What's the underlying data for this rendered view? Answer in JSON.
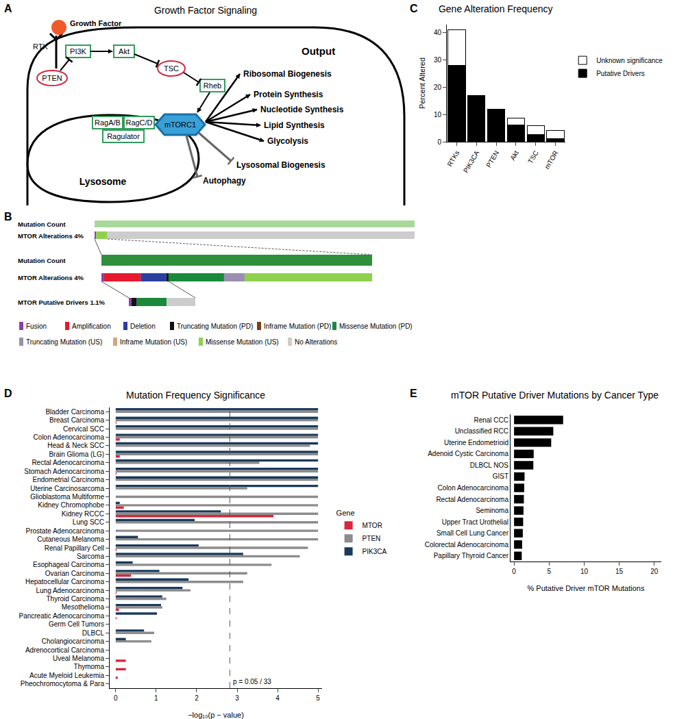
{
  "panel_labels": [
    "A",
    "B",
    "C",
    "D",
    "E"
  ],
  "diagram": {
    "title": "Growth Factor Signaling",
    "nodes": {
      "growth_factor": "Growth Factor",
      "rtk": "RTK",
      "pi3k": "PI3K",
      "pten": "PTEN",
      "akt": "Akt",
      "tsc": "TSC",
      "rheb": "Rheb",
      "raga": "RagA/B",
      "ragc": "RagC/D",
      "ragulator": "Ragulator",
      "mtorc1": "mTORC1",
      "lysosome": "Lysosome"
    },
    "output_title": "Output",
    "outputs": [
      "Ribosomal Biogenesis",
      "Protein Synthesis",
      "Nucleotide Synthesis",
      "Lipid Synthesis",
      "Glycolysis"
    ],
    "inhibited_outputs": [
      "Lysosomal Biogenesis",
      "Autophagy"
    ]
  },
  "oncoprint": {
    "tracks": [
      {
        "label": "Mutation Count",
        "kind": "count"
      },
      {
        "label": "MTOR Alterations 4%",
        "kind": "alterations",
        "segments": [
          {
            "type": "Fusion",
            "share": 0.5
          },
          {
            "type": "Missense Mutation (US)",
            "share": 3.5
          },
          {
            "type": "No Alterations",
            "share": 96
          }
        ]
      },
      {
        "label": "Mutation Count",
        "kind": "count"
      },
      {
        "label": "MTOR Alterations 4%",
        "kind": "alterations",
        "segments": [
          {
            "type": "Fusion",
            "share": 1
          },
          {
            "type": "Amplification",
            "share": 13.5
          },
          {
            "type": "Deletion",
            "share": 9.5
          },
          {
            "type": "Truncating Mutation (PD)",
            "share": 0.8
          },
          {
            "type": "Missense Mutation (PD)",
            "share": 20.5
          },
          {
            "type": "Truncating Mutation (US)",
            "share": 7.6
          },
          {
            "type": "Missense Mutation (US)",
            "share": 47.1
          }
        ]
      },
      {
        "label": "MTOR Putative Drivers 1.1%",
        "kind": "alterations",
        "segments": [
          {
            "type": "Fusion",
            "share": 4
          },
          {
            "type": "Truncating Mutation (PD)",
            "share": 8
          },
          {
            "type": "Missense Mutation (PD)",
            "share": 45
          },
          {
            "type": "No Alterations",
            "share": 43
          }
        ]
      }
    ],
    "legend": [
      {
        "name": "Fusion",
        "color": "#8b3fa8"
      },
      {
        "name": "Amplification",
        "color": "#e8192c"
      },
      {
        "name": "Deletion",
        "color": "#2a3fa0"
      },
      {
        "name": "Truncating Mutation (PD)",
        "color": "#111111"
      },
      {
        "name": "Inframe Mutation (PD)",
        "color": "#7b3f12"
      },
      {
        "name": "Missense Mutation (PD)",
        "color": "#1a8a3a"
      },
      {
        "name": "Truncating Mutation (US)",
        "color": "#9a8fb0"
      },
      {
        "name": "Inframe Mutation (US)",
        "color": "#d2a679"
      },
      {
        "name": "Missense Mutation (US)",
        "color": "#8fd14f"
      },
      {
        "name": "No Alterations",
        "color": "#cccccc"
      }
    ]
  },
  "chart_data": [
    {
      "type": "bar",
      "title": "Gene Alteration Frequency",
      "categories": [
        "RTKs",
        "PIK3CA",
        "PTEN",
        "Akt",
        "TSC",
        "mTOR"
      ],
      "stacked": true,
      "ylabel": "Percent Altered",
      "ylim": [
        0,
        43
      ],
      "yticks": [
        0,
        10,
        20,
        30,
        40
      ],
      "grid": false,
      "legend": "right",
      "series": [
        {
          "name": "Putative Drivers",
          "color": "#000000",
          "values": [
            28,
            17,
            12,
            6.2,
            2.6,
            1.1
          ]
        },
        {
          "name": "Unknown significance",
          "color": "#ffffff",
          "values": [
            13,
            0,
            0,
            2.5,
            3.2,
            3.0
          ]
        }
      ]
    },
    {
      "type": "bar",
      "orientation": "horizontal",
      "title": "Mutation Frequency Significance",
      "categories": [
        "Bladder Carcinoma",
        "Breast Carcinoma",
        "Cervical SCC",
        "Colon Adenocarcinoma",
        "Head & Neck SCC",
        "Brain Glioma (LG)",
        "Rectal Adenocarcinoma",
        "Stomach Adenocarcinoma",
        "Endometrial Carcinoma",
        "Uterine Carcinosarcoma",
        "Glioblastoma Multiforme",
        "Kidney Chromophobe",
        "Kidney RCCC",
        "Lung SCC",
        "Prostate Adenocarcinoma",
        "Cutaneous Melanoma",
        "Renal Papillary Cell",
        "Sarcoma",
        "Esophageal Carcinoma",
        "Ovarian Carcinoma",
        "Hepatocellular Carcinoma",
        "Lung Adenocarcinoma",
        "Thyroid Carcinoma",
        "Mesothelioma",
        "Pancreatic Adenocarcinoma",
        "Germ Cell Tumors",
        "DLBCL",
        "Cholangiocarcinoma",
        "Adrenocortical Carcinoma",
        "Uveal Melanoma",
        "Thymoma",
        "Acute Myeloid Leukemia",
        "Pheochromocytoma & Para"
      ],
      "xlabel": "−log₁₀(p − value)",
      "xlim": [
        -0.15,
        5.1
      ],
      "xticks": [
        0,
        1,
        2,
        3,
        4,
        5
      ],
      "grid": false,
      "legend": "right",
      "legend_title": "Gene",
      "series": [
        {
          "name": "MTOR",
          "color": "#d7263d",
          "values": [
            0,
            0.02,
            0,
            0.1,
            0,
            0.1,
            0,
            0.02,
            0,
            0,
            0,
            0.2,
            3.9,
            0,
            0,
            0,
            0.02,
            0,
            0,
            0.38,
            0,
            0.02,
            0,
            0.08,
            0.02,
            0,
            0,
            0,
            0,
            0.25,
            0.25,
            0.05,
            0
          ]
        },
        {
          "name": "PTEN",
          "color": "#8c8c8c",
          "values": [
            5,
            5,
            5,
            5,
            4.8,
            5,
            3.55,
            5,
            5,
            3.25,
            5,
            5,
            5,
            5,
            5,
            5,
            4.75,
            4.55,
            3.85,
            3.25,
            3.15,
            1.85,
            1.25,
            1.15,
            0,
            0,
            0.95,
            0.88,
            0,
            0,
            0,
            0,
            0
          ]
        },
        {
          "name": "PIK3CA",
          "color": "#1b3a5c",
          "values": [
            5,
            5,
            5,
            5,
            5,
            5,
            5,
            5,
            5,
            5,
            0,
            0.1,
            2.6,
            1.95,
            0,
            0.55,
            2.05,
            3.15,
            0.42,
            1.08,
            1.8,
            1.65,
            1.15,
            1.12,
            1.02,
            0,
            0.7,
            0.25,
            0,
            0,
            0,
            0,
            0
          ]
        }
      ],
      "reference_line": {
        "x": 2.82,
        "label": "p = 0.05 / 33",
        "line_style": "dashed"
      }
    },
    {
      "type": "bar",
      "orientation": "horizontal",
      "title": "mTOR Putative Driver Mutations by Cancer Type",
      "categories": [
        "Renal CCC",
        "Unclassified RCC",
        "Uterine Endometrioid",
        "Adenoid Cystic Carcinoma",
        "DLBCL NOS",
        "GIST",
        "Colon Adenocarcinoma",
        "Rectal Adenocarcinoma",
        "Seminoma",
        "Upper Tract Urothelial",
        "Small Cell Lung Cancer",
        "Colorectal Adenocarcinoma",
        "Papillary Thyroid Cancer"
      ],
      "values": [
        7.0,
        5.6,
        5.3,
        2.8,
        2.75,
        1.5,
        1.45,
        1.4,
        1.35,
        1.3,
        1.25,
        1.15,
        1.1
      ],
      "color": "#000000",
      "xlabel": "% Putative Driver mTOR Mutations",
      "xlim": [
        -0.5,
        21
      ],
      "xticks": [
        0,
        5,
        10,
        15,
        20
      ],
      "grid": false
    }
  ]
}
